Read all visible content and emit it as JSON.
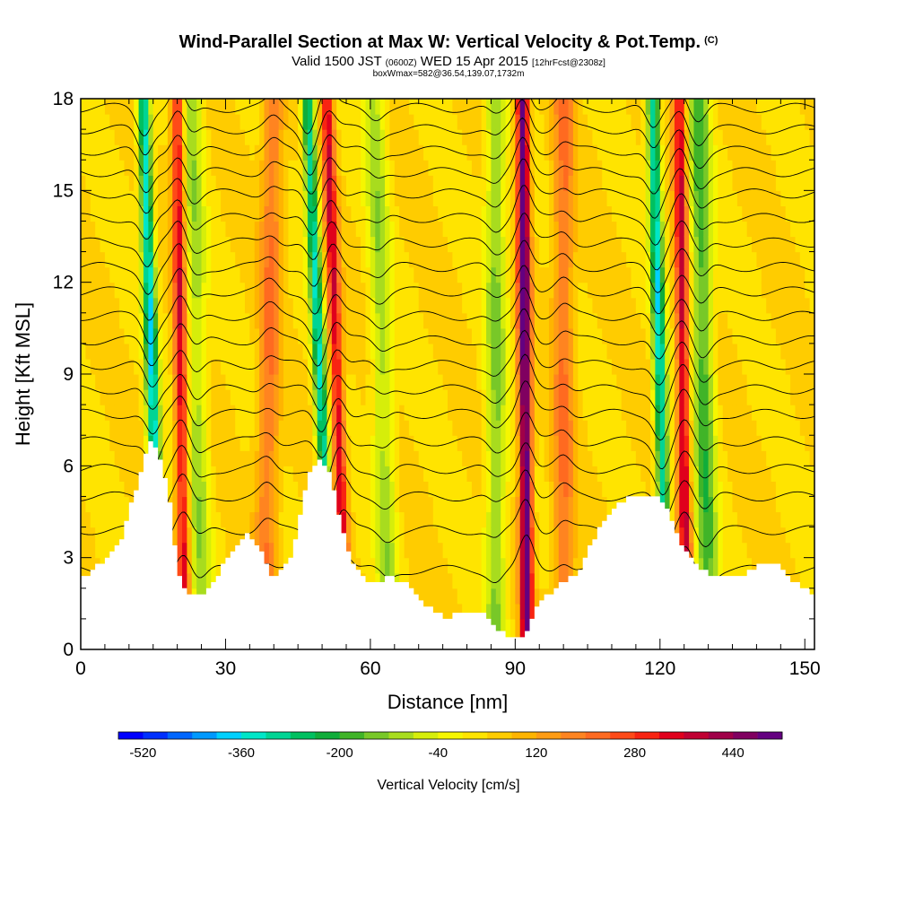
{
  "header": {
    "title": "Wind-Parallel Section at Max W: Vertical Velocity & Pot.Temp.",
    "title_unit_tag": "(C)",
    "valid_prefix": "Valid 1500 JST",
    "valid_utc": "(0600Z)",
    "valid_date": "WED 15 Apr 2015",
    "forecast_tag": "[12hrFcst@2308z]",
    "box_info": "boxWmax=582@36.54,139.07,1732m"
  },
  "chart_data": {
    "type": "heatmap",
    "xlabel": "Distance [nm]",
    "ylabel": "Height [Kft MSL]",
    "xlim": [
      0,
      152
    ],
    "ylim": [
      0,
      18
    ],
    "x_ticks": [
      0,
      30,
      60,
      90,
      120,
      150
    ],
    "y_ticks": [
      0,
      3,
      6,
      9,
      12,
      15,
      18
    ],
    "colorbar": {
      "title": "Vertical Velocity [cm/s]",
      "min": -560,
      "max": 520,
      "step": 40,
      "labels": [
        -520,
        -360,
        -200,
        -40,
        120,
        280,
        440
      ],
      "colors": [
        "#0000ff",
        "#0030ff",
        "#0066ff",
        "#0099ff",
        "#00d0ff",
        "#00e6c8",
        "#00d494",
        "#00c060",
        "#10ad3a",
        "#40b428",
        "#78c828",
        "#a8dc1e",
        "#d6ee0a",
        "#f6f600",
        "#ffe400",
        "#ffcc00",
        "#ffb400",
        "#ff9c14",
        "#ff8420",
        "#ff6a20",
        "#ff4a18",
        "#f82412",
        "#e0001c",
        "#c00032",
        "#a00048",
        "#800060",
        "#640080"
      ]
    },
    "bands": [
      {
        "feature": "downdraft",
        "x_at_bottom": 16.5,
        "x_at_top": 13,
        "peak_w": -400
      },
      {
        "feature": "updraft",
        "x_at_bottom": 21.5,
        "x_at_top": 20,
        "peak_w": 320
      },
      {
        "feature": "downdraft",
        "x_at_bottom": 25,
        "x_at_top": 23,
        "peak_w": -140
      },
      {
        "feature": "downdraft",
        "x_at_bottom": 52,
        "x_at_top": 47,
        "peak_w": -360
      },
      {
        "feature": "updraft",
        "x_at_bottom": 55,
        "x_at_top": 51,
        "peak_w": 320
      },
      {
        "feature": "updraft",
        "x_at_bottom": 38,
        "x_at_top": 40,
        "peak_w": 160
      },
      {
        "feature": "downdraft",
        "x_at_bottom": 64,
        "x_at_top": 61,
        "peak_w": -140
      },
      {
        "feature": "downdraft",
        "x_at_bottom": 86,
        "x_at_top": 86,
        "peak_w": -160
      },
      {
        "feature": "updraft",
        "x_at_bottom": 92.5,
        "x_at_top": 91.5,
        "peak_w": 500
      },
      {
        "feature": "updraft",
        "x_at_bottom": 100,
        "x_at_top": 100,
        "peak_w": 160
      },
      {
        "feature": "downdraft",
        "x_at_bottom": 121.5,
        "x_at_top": 118.5,
        "peak_w": -380
      },
      {
        "feature": "updraft",
        "x_at_bottom": 125.5,
        "x_at_top": 124,
        "peak_w": 340
      },
      {
        "feature": "downdraft",
        "x_at_bottom": 130,
        "x_at_top": 128,
        "peak_w": -220
      }
    ],
    "terrain_profile": [
      {
        "x": 0,
        "h": 2.3
      },
      {
        "x": 4,
        "h": 2.8
      },
      {
        "x": 8,
        "h": 3.4
      },
      {
        "x": 12,
        "h": 5.5
      },
      {
        "x": 14,
        "h": 6.8
      },
      {
        "x": 16,
        "h": 6.4
      },
      {
        "x": 18,
        "h": 5.4
      },
      {
        "x": 20,
        "h": 2.6
      },
      {
        "x": 22,
        "h": 1.7
      },
      {
        "x": 26,
        "h": 1.8
      },
      {
        "x": 30,
        "h": 2.9
      },
      {
        "x": 34,
        "h": 3.8
      },
      {
        "x": 37,
        "h": 3.4
      },
      {
        "x": 40,
        "h": 2.3
      },
      {
        "x": 44,
        "h": 3.2
      },
      {
        "x": 47,
        "h": 5.6
      },
      {
        "x": 49,
        "h": 6.2
      },
      {
        "x": 51,
        "h": 6.0
      },
      {
        "x": 53,
        "h": 4.8
      },
      {
        "x": 56,
        "h": 2.8
      },
      {
        "x": 60,
        "h": 2.1
      },
      {
        "x": 64,
        "h": 2.4
      },
      {
        "x": 68,
        "h": 2.1
      },
      {
        "x": 72,
        "h": 1.4
      },
      {
        "x": 76,
        "h": 1.0
      },
      {
        "x": 80,
        "h": 1.3
      },
      {
        "x": 83,
        "h": 1.2
      },
      {
        "x": 85,
        "h": 0.9
      },
      {
        "x": 87,
        "h": 0.6
      },
      {
        "x": 90,
        "h": 0.3
      },
      {
        "x": 92,
        "h": 0.5
      },
      {
        "x": 94,
        "h": 1.2
      },
      {
        "x": 97,
        "h": 1.8
      },
      {
        "x": 100,
        "h": 2.2
      },
      {
        "x": 103,
        "h": 2.5
      },
      {
        "x": 106,
        "h": 3.5
      },
      {
        "x": 110,
        "h": 4.6
      },
      {
        "x": 113,
        "h": 4.9
      },
      {
        "x": 117,
        "h": 5.1
      },
      {
        "x": 120,
        "h": 5.0
      },
      {
        "x": 122,
        "h": 4.4
      },
      {
        "x": 124,
        "h": 3.6
      },
      {
        "x": 128,
        "h": 2.6
      },
      {
        "x": 132,
        "h": 2.4
      },
      {
        "x": 136,
        "h": 2.3
      },
      {
        "x": 140,
        "h": 2.7
      },
      {
        "x": 144,
        "h": 2.9
      },
      {
        "x": 148,
        "h": 2.2
      },
      {
        "x": 152,
        "h": 1.8
      }
    ],
    "theta_contours": {
      "base_heights": [
        2.6,
        3.9,
        5.0,
        5.9,
        6.8,
        7.7,
        8.5,
        9.3,
        10.1,
        10.9,
        11.7,
        12.5,
        13.3,
        14.1,
        14.9,
        15.6,
        16.3,
        17.0,
        17.7
      ],
      "wave_amplitude": 0.8
    }
  }
}
